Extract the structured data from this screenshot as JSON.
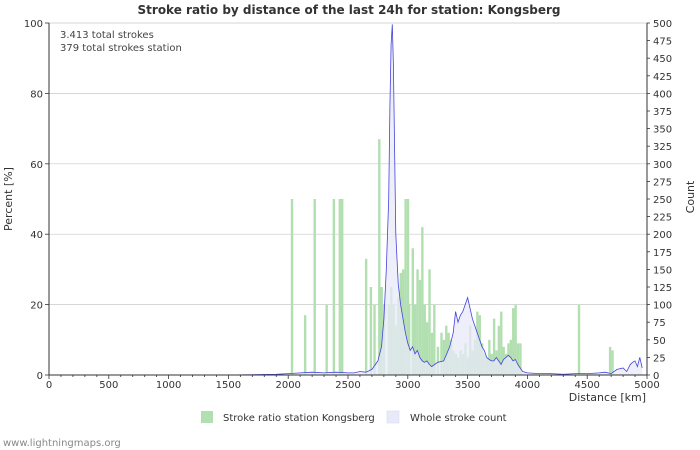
{
  "chart_data": {
    "type": "bar",
    "title": "Stroke ratio by distance of the last 24h for station: Kongsberg",
    "xlabel": "Distance   [km]",
    "ylabel_left": "Percent   [%]",
    "ylabel_right": "Count",
    "xlim": [
      0,
      5000
    ],
    "ylim_left": [
      0,
      100
    ],
    "ylim_right": [
      0,
      500
    ],
    "x_ticks": [
      "0",
      "500",
      "1000",
      "1500",
      "2000",
      "2500",
      "3000",
      "3500",
      "4000",
      "4500",
      "5000"
    ],
    "y_left_ticks": [
      "0",
      "20",
      "40",
      "60",
      "80",
      "100"
    ],
    "y_right_ticks": [
      "0",
      "25",
      "50",
      "75",
      "100",
      "125",
      "150",
      "175",
      "200",
      "225",
      "250",
      "275",
      "300",
      "325",
      "350",
      "375",
      "400",
      "425",
      "450",
      "475",
      "500"
    ],
    "info_lines": [
      "3.413 total strokes",
      "379 total strokes station"
    ],
    "legend": [
      "Stroke ratio station Kongsberg",
      "Whole stroke count"
    ],
    "colors": {
      "bar": "#b2dfb0",
      "line": "#4444dd",
      "area": "#e8eaf8",
      "grid": "#c8c8c8"
    },
    "series": [
      {
        "name": "Stroke ratio station Kongsberg",
        "unit": "percent",
        "x": [
          2030,
          2140,
          2220,
          2320,
          2380,
          2430,
          2450,
          2650,
          2690,
          2720,
          2760,
          2780,
          2800,
          2840,
          2860,
          2880,
          2900,
          2920,
          2940,
          2960,
          2980,
          3000,
          3010,
          3040,
          3060,
          3080,
          3100,
          3120,
          3140,
          3160,
          3180,
          3200,
          3220,
          3250,
          3280,
          3300,
          3320,
          3340,
          3360,
          3380,
          3400,
          3420,
          3440,
          3460,
          3480,
          3500,
          3520,
          3540,
          3560,
          3580,
          3600,
          3620,
          3640,
          3660,
          3680,
          3700,
          3720,
          3740,
          3760,
          3780,
          3800,
          3820,
          3840,
          3860,
          3880,
          3900,
          3920,
          3940,
          4430,
          4690,
          4710
        ],
        "values": [
          50,
          17,
          50,
          20,
          50,
          50,
          50,
          33,
          25,
          20,
          67,
          25,
          20,
          20,
          25,
          20,
          14,
          22,
          29,
          30,
          50,
          50,
          20,
          36,
          20,
          30,
          27,
          42,
          20,
          15,
          30,
          12,
          20,
          8,
          12,
          10,
          14,
          12,
          10,
          7,
          6,
          5,
          7,
          6,
          9,
          5,
          14,
          7,
          10,
          18,
          17,
          9,
          6,
          5,
          10,
          6,
          16,
          7,
          14,
          18,
          8,
          6,
          9,
          10,
          19,
          20,
          9,
          9,
          20,
          8,
          7
        ]
      },
      {
        "name": "Whole stroke count",
        "unit": "count",
        "x": [
          0,
          1500,
          1900,
          2000,
          2100,
          2200,
          2300,
          2400,
          2500,
          2550,
          2600,
          2650,
          2700,
          2750,
          2780,
          2800,
          2820,
          2840,
          2850,
          2860,
          2870,
          2880,
          2890,
          2900,
          2920,
          2940,
          2960,
          2980,
          3000,
          3020,
          3040,
          3060,
          3080,
          3100,
          3120,
          3140,
          3160,
          3180,
          3200,
          3250,
          3300,
          3350,
          3380,
          3400,
          3420,
          3440,
          3460,
          3480,
          3500,
          3520,
          3540,
          3560,
          3580,
          3600,
          3620,
          3640,
          3660,
          3680,
          3700,
          3720,
          3740,
          3760,
          3780,
          3800,
          3820,
          3840,
          3860,
          3880,
          3900,
          3920,
          3940,
          3960,
          4000,
          4100,
          4200,
          4300,
          4400,
          4500,
          4600,
          4650,
          4700,
          4750,
          4800,
          4830,
          4860,
          4880,
          4900,
          4920,
          4940,
          4960
        ],
        "values": [
          0,
          0,
          1,
          2,
          3,
          4,
          3,
          4,
          3,
          3,
          5,
          4,
          8,
          20,
          40,
          80,
          150,
          250,
          380,
          470,
          498,
          440,
          320,
          200,
          130,
          100,
          80,
          60,
          45,
          35,
          40,
          30,
          35,
          25,
          20,
          18,
          20,
          15,
          12,
          18,
          20,
          40,
          60,
          90,
          75,
          85,
          90,
          100,
          110,
          95,
          80,
          70,
          60,
          50,
          40,
          35,
          25,
          22,
          20,
          20,
          25,
          20,
          15,
          22,
          25,
          28,
          25,
          20,
          22,
          15,
          10,
          5,
          3,
          2,
          2,
          1,
          2,
          2,
          3,
          4,
          2,
          8,
          10,
          5,
          15,
          18,
          20,
          12,
          25,
          10
        ]
      }
    ]
  },
  "footer": {
    "credit": "www.lightningmaps.org"
  }
}
